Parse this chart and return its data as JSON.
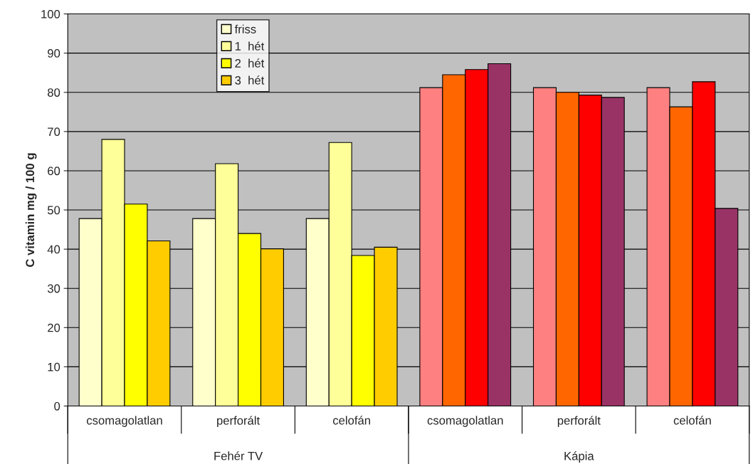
{
  "chart_data": {
    "type": "bar",
    "ylabel": "C vitamin mg / 100 g",
    "categories": [
      "csomagolatlan",
      "perforált",
      "celofán",
      "csomagolatlan",
      "perforált",
      "celofán"
    ],
    "series": [
      {
        "name": "friss",
        "color": "#ffffcc",
        "colors": [
          "#ffffcc",
          "#ffffcc",
          "#ffffcc",
          "#ff8080",
          "#ff8080",
          "#ff8080"
        ],
        "values": [
          47.8,
          47.8,
          47.8,
          81.2,
          81.2,
          81.2
        ]
      },
      {
        "name": "1  hét",
        "color": "#ffff99",
        "colors": [
          "#ffff99",
          "#ffff99",
          "#ffff99",
          "#ff6600",
          "#ff6600",
          "#ff6600"
        ],
        "values": [
          68,
          61.8,
          67.2,
          84.5,
          80,
          76.3
        ]
      },
      {
        "name": "2  hét",
        "color": "#ffff00",
        "colors": [
          "#ffff00",
          "#ffff00",
          "#ffff00",
          "#ff0000",
          "#ff0000",
          "#ff0000"
        ],
        "values": [
          51.5,
          44,
          38.4,
          85.8,
          79.3,
          82.7
        ]
      },
      {
        "name": "3  hét",
        "color": "#ffcc00",
        "colors": [
          "#ffcc00",
          "#ffcc00",
          "#ffcc00",
          "#993366",
          "#993366",
          "#993366"
        ],
        "values": [
          42.1,
          40.1,
          40.5,
          87.3,
          78.7,
          50.4
        ]
      }
    ],
    "annotations": [
      "Fehér TV",
      "Kápia"
    ],
    "ylim": [
      0,
      100
    ],
    "yticks": [
      0,
      10,
      20,
      30,
      40,
      50,
      60,
      70,
      80,
      90,
      100
    ],
    "grid": "y",
    "legend": "top left"
  }
}
